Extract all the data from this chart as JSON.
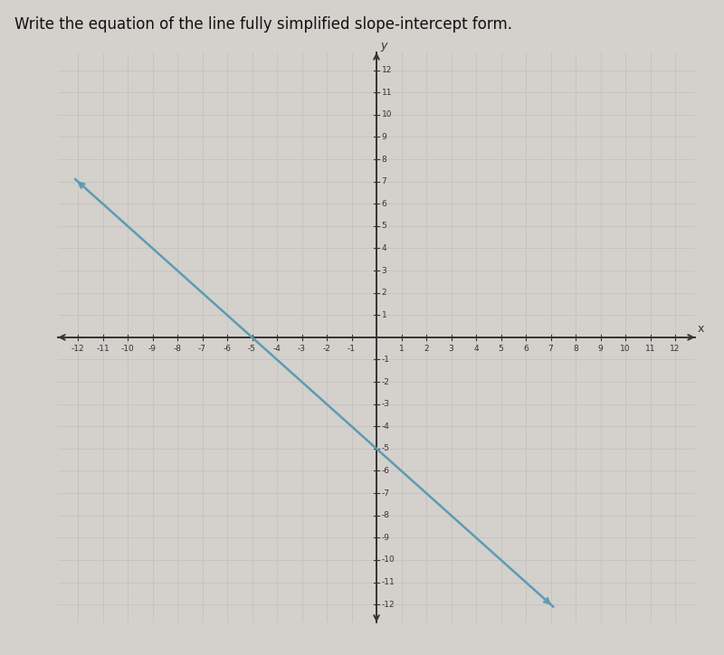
{
  "title": "Write the equation of the line fully simplified slope-intercept form.",
  "title_fontsize": 12,
  "xmin": -12,
  "xmax": 12,
  "ymin": -12,
  "ymax": 12,
  "slope": -1,
  "intercept": -5,
  "line_color": "#5b9bb5",
  "line_width": 1.8,
  "grid_color": "#bbbbbb",
  "grid_linewidth": 0.4,
  "axis_color": "#333333",
  "tick_fontsize": 6.5,
  "background_color": "#d4d0cb",
  "plot_bg_color": "#d4d0cb",
  "xlabel": "x",
  "ylabel": "y",
  "axis_linewidth": 1.4
}
